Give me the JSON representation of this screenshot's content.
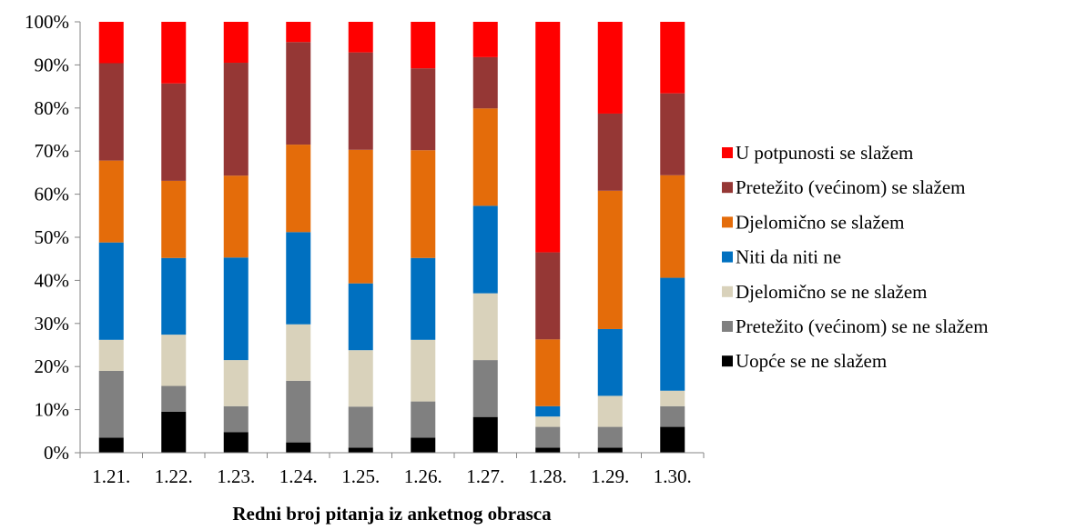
{
  "chart_data": {
    "type": "bar",
    "stacked": true,
    "normalized": true,
    "title": "",
    "xlabel": "Redni broj pitanja iz anketnog obrasca",
    "ylabel": "",
    "ylim": [
      0,
      100
    ],
    "y_ticks": [
      "0%",
      "10%",
      "20%",
      "30%",
      "40%",
      "50%",
      "60%",
      "70%",
      "80%",
      "90%",
      "100%"
    ],
    "grid": false,
    "legend_position": "right",
    "categories": [
      "1.21.",
      "1.22.",
      "1.23.",
      "1.24.",
      "1.25.",
      "1.26.",
      "1.27.",
      "1.28.",
      "1.29.",
      "1.30."
    ],
    "series": [
      {
        "name": "Uopće se ne slažem",
        "color": "#000000",
        "values": [
          3.5,
          9.5,
          4.8,
          2.4,
          1.2,
          3.5,
          8.3,
          1.2,
          1.2,
          6.0
        ]
      },
      {
        "name": "Pretežito (većinom) se ne slažem",
        "color": "#808080",
        "values": [
          15.5,
          6.0,
          6.0,
          14.3,
          9.5,
          8.4,
          13.2,
          4.8,
          4.8,
          4.8
        ]
      },
      {
        "name": "Djelomično se ne slažem",
        "color": "#d9d2bb",
        "values": [
          7.2,
          11.9,
          10.7,
          13.1,
          13.1,
          14.3,
          15.5,
          2.4,
          7.2,
          3.6
        ]
      },
      {
        "name": "Niti da niti ne",
        "color": "#0070c0",
        "values": [
          22.6,
          17.8,
          23.8,
          21.4,
          15.5,
          19.0,
          20.3,
          2.4,
          15.5,
          26.2
        ]
      },
      {
        "name": "Djelomično se slažem",
        "color": "#e46c0a",
        "values": [
          19.0,
          17.9,
          19.0,
          20.3,
          31.0,
          25.0,
          22.6,
          15.5,
          32.1,
          23.8
        ]
      },
      {
        "name": "Pretežito (većinom) se slažem",
        "color": "#953735",
        "values": [
          22.6,
          22.6,
          26.2,
          23.8,
          22.6,
          19.0,
          11.9,
          20.2,
          17.9,
          19.0
        ]
      },
      {
        "name": "U potpunosti se slažem",
        "color": "#ff0000",
        "values": [
          9.6,
          14.3,
          9.5,
          4.7,
          7.1,
          10.8,
          8.2,
          53.5,
          21.3,
          16.6
        ]
      }
    ]
  }
}
